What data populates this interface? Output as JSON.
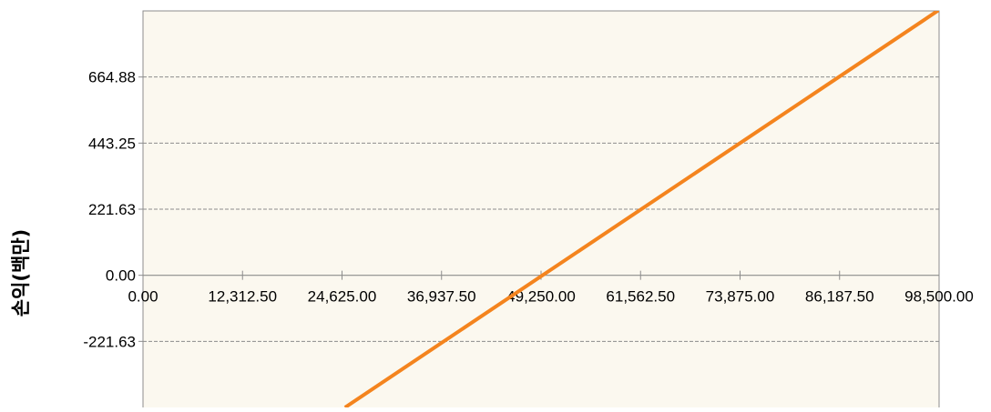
{
  "chart_data": {
    "type": "line",
    "title": "",
    "xlabel": "",
    "ylabel": "손익(백만)",
    "x_tick_labels": [
      "0.00",
      "12,312.50",
      "24,625.00",
      "36,937.50",
      "49,250.00",
      "61,562.50",
      "73,875.00",
      "86,187.50",
      "98,500.00"
    ],
    "y_tick_labels": [
      "-221.63",
      "0.00",
      "221.63",
      "443.25",
      "664.88"
    ],
    "xlim": [
      0,
      98500
    ],
    "ylim": [
      -443.25,
      886.5
    ],
    "grid": true,
    "legend": "none",
    "series": [
      {
        "x": [
          25000,
          98500
        ],
        "y": [
          -443.25,
          890.0
        ]
      }
    ],
    "colors": {
      "plot_background": "#fbf8ef",
      "line": "#f4841e",
      "grid": "#8c8c8c",
      "axis": "#8c8c8c"
    }
  }
}
